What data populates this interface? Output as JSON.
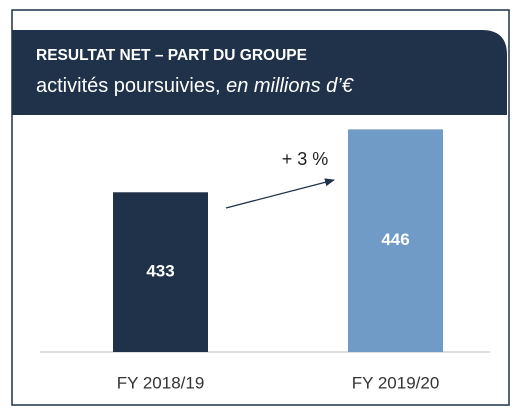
{
  "chart_data": {
    "type": "bar",
    "title": "RESULTAT NET – PART DU GROUPE",
    "subtitle": "activités poursuivies,",
    "subtitle_italic": "en millions d’€",
    "annotation": "+ 3 %",
    "categories": [
      "FY 2018/19",
      "FY 2019/20"
    ],
    "values": [
      433,
      446
    ],
    "colors": [
      "#1f3249",
      "#6f9bc6"
    ],
    "ylim": [
      400,
      450
    ]
  }
}
